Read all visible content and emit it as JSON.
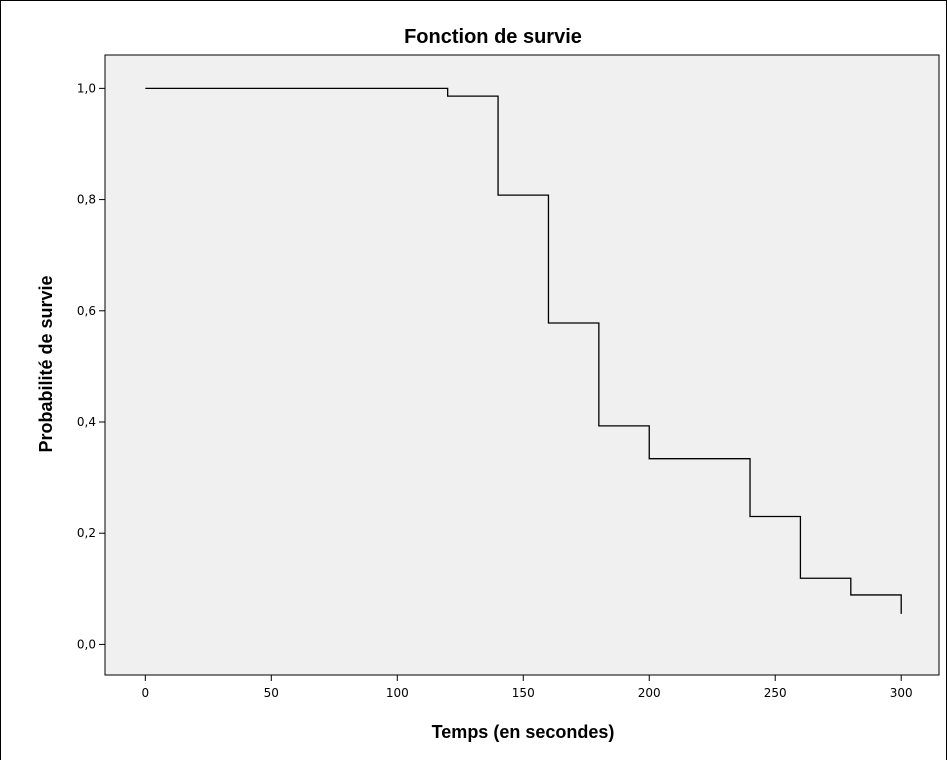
{
  "chart_data": {
    "type": "line",
    "step": true,
    "title": "Fonction de survie",
    "xlabel": "Temps (en secondes)",
    "ylabel": "Probabilité de survie",
    "xlim": [
      -16,
      315
    ],
    "ylim": [
      -0.055,
      1.06
    ],
    "xticks": [
      0,
      50,
      100,
      150,
      200,
      250,
      300
    ],
    "xtick_labels": [
      "0",
      "50",
      "100",
      "150",
      "200",
      "250",
      "300"
    ],
    "yticks": [
      0.0,
      0.2,
      0.4,
      0.6,
      0.8,
      1.0
    ],
    "ytick_labels": [
      "0,0",
      "0,2",
      "0,4",
      "0,6",
      "0,8",
      "1,0"
    ],
    "grid": false,
    "plot_background": "#f0f0f0",
    "line_color": "#000000",
    "series": [
      {
        "x": [
          0,
          120,
          140,
          160,
          180,
          200,
          240,
          260,
          280,
          300
        ],
        "y": [
          1.0,
          0.986,
          0.808,
          0.578,
          0.393,
          0.334,
          0.23,
          0.119,
          0.089,
          0.055
        ]
      }
    ]
  }
}
